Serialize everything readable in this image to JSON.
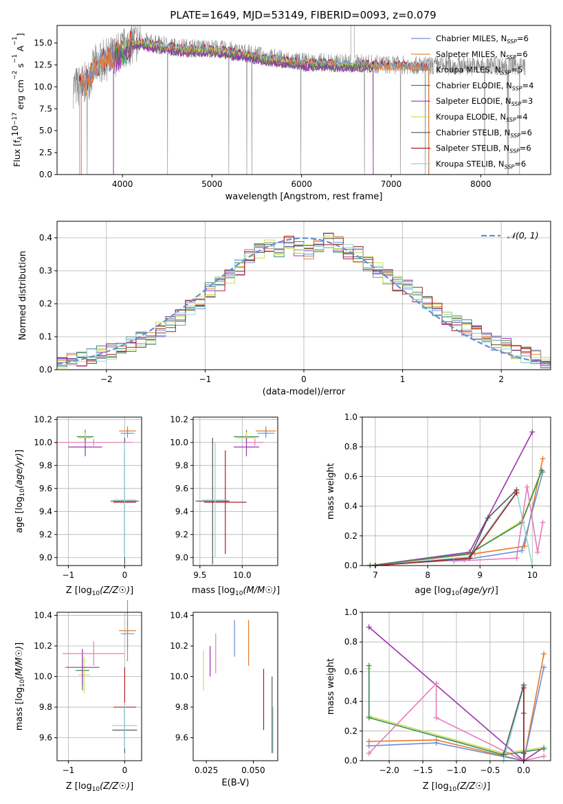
{
  "figure": {
    "title": "PLATE=1649, MJD=53149, FIBERID=0093, z=0.079"
  },
  "colors": {
    "chabrier_miles": "#6a8fd6",
    "salpeter_miles": "#e8782a",
    "kroupa_miles": "#8a8a8a",
    "chabrier_elodie": "#3a8a5a",
    "salpeter_elodie": "#9b30b0",
    "kroupa_elodie": "#c8e04a",
    "chabrier_stelib": "#555555",
    "salpeter_stelib": "#b01c1c",
    "kroupa_stelib": "#88d8d8",
    "pink": "#e87ab8",
    "grid": "#b0b0b0",
    "gauss": "#5f8fd6"
  },
  "chart_data": [
    {
      "id": "spectrum",
      "type": "line",
      "xlabel": "wavelength [Angstrom, rest frame]",
      "ylabel_parts": [
        "Flux [f",
        "λ",
        "10",
        "−17",
        " erg cm",
        "−2",
        " s",
        "−1",
        " A",
        "−1",
        "]"
      ],
      "xlim": [
        3270,
        8780
      ],
      "ylim": [
        0,
        17
      ],
      "xticks": [
        4000,
        5000,
        6000,
        7000,
        8000
      ],
      "yticks": [
        "0.0",
        "2.5",
        "5.0",
        "7.5",
        "10.0",
        "12.5",
        "15.0"
      ],
      "grid": false,
      "legend_position": "upper right",
      "legend": [
        {
          "label": "Chabrier MILES, N",
          "sub": "SSP",
          "suffix": "=6",
          "color": "#6a8fd6"
        },
        {
          "label": "Salpeter MILES, N",
          "sub": "SSP",
          "suffix": "=6",
          "color": "#e8782a"
        },
        {
          "label": "Kroupa MILES, N",
          "sub": "SSP",
          "suffix": "=5",
          "color": "#8a8a8a"
        },
        {
          "label": "Chabrier ELODIE, N",
          "sub": "SSP",
          "suffix": "=4",
          "color": "#3a8a5a"
        },
        {
          "label": "Salpeter ELODIE, N",
          "sub": "SSP",
          "suffix": "=3",
          "color": "#9b30b0"
        },
        {
          "label": "Kroupa ELODIE, N",
          "sub": "SSP",
          "suffix": "=4",
          "color": "#c8e04a"
        },
        {
          "label": "Chabrier STELIB, N",
          "sub": "SSP",
          "suffix": "=6",
          "color": "#555555"
        },
        {
          "label": "Salpeter STELIB, N",
          "sub": "SSP",
          "suffix": "=6",
          "color": "#b01c1c"
        },
        {
          "label": "Kroupa STELIB, N",
          "sub": "SSP",
          "suffix": "=6",
          "color": "#88d8d8"
        }
      ],
      "continuum": {
        "x": [
          3500,
          3600,
          3700,
          3800,
          3900,
          4000,
          4100,
          4200,
          4400,
          4600,
          4800,
          5000,
          5200,
          5400,
          5600,
          5800,
          6000,
          6200,
          6400,
          6600,
          6800,
          7000,
          7200,
          7400
        ],
        "y": [
          10.0,
          10.5,
          12.5,
          13.0,
          13.5,
          14.2,
          15.0,
          15.2,
          14.8,
          14.5,
          14.4,
          14.4,
          14.1,
          13.8,
          13.4,
          13.1,
          12.8,
          12.8,
          12.7,
          12.7,
          12.6,
          12.5,
          12.5,
          12.4
        ]
      },
      "data_range": [
        3450,
        8500
      ],
      "model_ranges": [
        {
          "series": "Salpeter STELIB",
          "x": [
            3520,
            7420
          ]
        },
        {
          "series": "Kroupa STELIB",
          "x": [
            3520,
            7420
          ]
        },
        {
          "series": "Chabrier MILES",
          "x": [
            3540,
            7420
          ]
        },
        {
          "series": "Salpeter MILES",
          "x": [
            3540,
            7420
          ]
        },
        {
          "series": "Kroupa ELODIE",
          "x": [
            3900,
            6800
          ]
        },
        {
          "series": "Chabrier ELODIE",
          "x": [
            3900,
            6800
          ]
        },
        {
          "series": "Salpeter ELODIE",
          "x": [
            3900,
            6800
          ]
        }
      ]
    },
    {
      "id": "residuals",
      "type": "step",
      "xlabel": "(data-model)/error",
      "ylabel": "Normed distribution",
      "xlim": [
        -2.5,
        2.5
      ],
      "ylim": [
        0,
        0.45
      ],
      "xticks": [
        -2,
        -1,
        0,
        1,
        2
      ],
      "xtick_labels": [
        "−2",
        "−1",
        "0",
        "1",
        "2"
      ],
      "yticks": [
        "0.0",
        "0.1",
        "0.2",
        "0.3",
        "0.4"
      ],
      "grid": true,
      "legend_position": "upper right",
      "legend_label": "𝒩(0, 1)",
      "bins": [
        -2.5,
        -2.4,
        -2.3,
        -2.2,
        -2.1,
        -2.0,
        -1.9,
        -1.8,
        -1.7,
        -1.6,
        -1.5,
        -1.4,
        -1.3,
        -1.2,
        -1.1,
        -1.0,
        -0.9,
        -0.8,
        -0.7,
        -0.6,
        -0.5,
        -0.4,
        -0.3,
        -0.2,
        -0.1,
        0.0,
        0.1,
        0.2,
        0.3,
        0.4,
        0.5,
        0.6,
        0.7,
        0.8,
        0.9,
        1.0,
        1.1,
        1.2,
        1.3,
        1.4,
        1.5,
        1.6,
        1.7,
        1.8,
        1.9,
        2.0,
        2.1,
        2.2,
        2.3,
        2.4,
        2.5
      ],
      "base_profile": [
        0.02,
        0.03,
        0.035,
        0.04,
        0.05,
        0.055,
        0.07,
        0.08,
        0.09,
        0.1,
        0.12,
        0.14,
        0.16,
        0.19,
        0.21,
        0.24,
        0.26,
        0.28,
        0.31,
        0.34,
        0.36,
        0.37,
        0.36,
        0.38,
        0.37,
        0.36,
        0.37,
        0.39,
        0.38,
        0.36,
        0.35,
        0.32,
        0.3,
        0.28,
        0.26,
        0.25,
        0.23,
        0.2,
        0.18,
        0.16,
        0.14,
        0.13,
        0.11,
        0.09,
        0.08,
        0.07,
        0.055,
        0.045,
        0.035,
        0.025
      ],
      "series": [
        "Chabrier MILES",
        "Salpeter MILES",
        "Kroupa MILES",
        "Chabrier ELODIE",
        "Salpeter ELODIE",
        "Kroupa ELODIE",
        "Chabrier STELIB",
        "Salpeter STELIB",
        "Kroupa STELIB"
      ],
      "gaussian": {
        "mu": 0,
        "sigma": 1
      }
    },
    {
      "id": "age_vs_Z",
      "type": "errorbar",
      "xlabel": "Z [log10(Z/Z☉)]",
      "ylabel": "age  [log10(age/yr)]",
      "xlim": [
        -1.2,
        0.3
      ],
      "ylim": [
        8.93,
        10.22
      ],
      "xticks": [
        -1,
        0
      ],
      "xtick_labels": [
        "−1",
        "0"
      ],
      "yticks": [
        9.0,
        9.2,
        9.4,
        9.6,
        9.8,
        10.0,
        10.2
      ],
      "grid": true,
      "points": [
        {
          "x": -0.7,
          "y": 10.05,
          "xe": 0.15,
          "ye": 0.06,
          "color": "#3a8a5a"
        },
        {
          "x": -0.7,
          "y": 10.04,
          "xe": 0.12,
          "ye": 0.05,
          "color": "#c8e04a"
        },
        {
          "x": -0.7,
          "y": 9.96,
          "xe": 0.3,
          "ye": 0.08,
          "color": "#9b30b0"
        },
        {
          "x": -0.55,
          "y": 10.0,
          "xe": 0.7,
          "ye": 0.03,
          "color": "#e87ab8"
        },
        {
          "x": 0.05,
          "y": 10.1,
          "xe": 0.15,
          "ye": 0.04,
          "color": "#e8782a"
        },
        {
          "x": 0.05,
          "y": 10.08,
          "xe": 0.12,
          "ye": 0.04,
          "color": "#6a8fd6"
        },
        {
          "x": 0.0,
          "y": 9.49,
          "xe": 0.25,
          "ye": 0.55,
          "color": "#555555"
        },
        {
          "x": 0.0,
          "y": 9.48,
          "xe": 0.2,
          "ye": 0.45,
          "color": "#b01c1c"
        },
        {
          "x": 0.0,
          "y": 9.5,
          "xe": 0.2,
          "ye": 0.5,
          "color": "#88d8d8"
        }
      ]
    },
    {
      "id": "age_vs_mass",
      "type": "errorbar",
      "xlabel": "mass [log10(M/M☉)]",
      "xlim": [
        9.42,
        10.42
      ],
      "ylim": [
        8.93,
        10.22
      ],
      "xticks": [
        9.5,
        10.0
      ],
      "xtick_labels": [
        "9.5",
        "10.0"
      ],
      "yticks": [
        9.0,
        9.2,
        9.4,
        9.6,
        9.8,
        10.0,
        10.2
      ],
      "grid": true,
      "points": [
        {
          "x": 10.05,
          "y": 10.05,
          "xe": 0.15,
          "ye": 0.06,
          "color": "#3a8a5a"
        },
        {
          "x": 10.05,
          "y": 10.04,
          "xe": 0.12,
          "ye": 0.05,
          "color": "#c8e04a"
        },
        {
          "x": 10.05,
          "y": 9.96,
          "xe": 0.15,
          "ye": 0.08,
          "color": "#9b30b0"
        },
        {
          "x": 10.15,
          "y": 10.0,
          "xe": 0.1,
          "ye": 0.03,
          "color": "#e87ab8"
        },
        {
          "x": 10.28,
          "y": 10.1,
          "xe": 0.12,
          "ye": 0.04,
          "color": "#e8782a"
        },
        {
          "x": 10.28,
          "y": 10.08,
          "xe": 0.1,
          "ye": 0.04,
          "color": "#6a8fd6"
        },
        {
          "x": 9.65,
          "y": 9.49,
          "xe": 0.2,
          "ye": 0.55,
          "color": "#555555"
        },
        {
          "x": 9.8,
          "y": 9.48,
          "xe": 0.25,
          "ye": 0.45,
          "color": "#b01c1c"
        },
        {
          "x": 9.68,
          "y": 9.5,
          "xe": 0.15,
          "ye": 0.5,
          "color": "#88d8d8"
        }
      ]
    },
    {
      "id": "weight_vs_age",
      "type": "line",
      "xlabel": "age  [log10(age/yr)]",
      "ylabel": "mass weight",
      "xlim": [
        6.75,
        10.35
      ],
      "ylim": [
        0,
        1.0
      ],
      "xticks": [
        7,
        8,
        9,
        10
      ],
      "yticks": [
        0.0,
        0.2,
        0.4,
        0.6,
        0.8,
        1.0
      ],
      "grid": true,
      "series": [
        {
          "name": "Salpeter ELODIE",
          "color": "#9b30b0",
          "x": [
            6.9,
            8.8,
            10.0
          ],
          "y": [
            0.0,
            0.09,
            0.9
          ]
        },
        {
          "name": "Salpeter MILES",
          "color": "#e8782a",
          "x": [
            6.9,
            8.9,
            9.85,
            10.2
          ],
          "y": [
            0.0,
            0.08,
            0.13,
            0.72
          ]
        },
        {
          "name": "Chabrier MILES",
          "color": "#6a8fd6",
          "x": [
            6.9,
            8.7,
            9.8,
            10.2
          ],
          "y": [
            0.0,
            0.04,
            0.1,
            0.63
          ]
        },
        {
          "name": "Kroupa ELODIE",
          "color": "#c8e04a",
          "x": [
            6.9,
            8.8,
            9.8,
            10.15
          ],
          "y": [
            0.0,
            0.08,
            0.3,
            0.62
          ]
        },
        {
          "name": "Chabrier ELODIE",
          "color": "#3a8a5a",
          "x": [
            6.9,
            8.8,
            9.8,
            10.18
          ],
          "y": [
            0.0,
            0.08,
            0.29,
            0.64
          ]
        },
        {
          "name": "Kroupa STELIB",
          "color": "#88d8d8",
          "x": [
            7.0,
            8.8,
            9.7,
            10.0
          ],
          "y": [
            0.0,
            0.06,
            0.5,
            0.0
          ]
        },
        {
          "name": "Chabrier STELIB",
          "color": "#555555",
          "x": [
            7.0,
            8.8,
            9.15,
            9.7
          ],
          "y": [
            0.0,
            0.05,
            0.32,
            0.51
          ]
        },
        {
          "name": "Salpeter STELIB",
          "color": "#b01c1c",
          "x": [
            7.0,
            8.8,
            9.7
          ],
          "y": [
            0.0,
            0.05,
            0.49
          ]
        },
        {
          "name": "pink",
          "color": "#e87ab8",
          "x": [
            8.5,
            9.7,
            9.9,
            10.1,
            10.2
          ],
          "y": [
            0.03,
            0.05,
            0.53,
            0.09,
            0.29
          ]
        }
      ]
    },
    {
      "id": "mass_vs_Z",
      "type": "errorbar",
      "xlabel": "Z [log10(Z/Z☉)]",
      "ylabel": "mass [log10(M/M☉)]",
      "xlim": [
        -1.2,
        0.3
      ],
      "ylim": [
        9.45,
        10.42
      ],
      "xticks": [
        -1,
        0
      ],
      "xtick_labels": [
        "−1",
        "0"
      ],
      "yticks": [
        9.6,
        9.8,
        10.0,
        10.2,
        10.4
      ],
      "grid": true,
      "points": [
        {
          "x": -0.75,
          "y": 10.04,
          "xe": 0.12,
          "ye": 0.13,
          "color": "#3a8a5a"
        },
        {
          "x": -0.72,
          "y": 10.01,
          "xe": 0.1,
          "ye": 0.12,
          "color": "#c8e04a"
        },
        {
          "x": -0.75,
          "y": 10.06,
          "xe": 0.3,
          "ye": 0.12,
          "color": "#9b30b0"
        },
        {
          "x": -0.55,
          "y": 10.15,
          "xe": 0.55,
          "ye": 0.08,
          "color": "#e87ab8"
        },
        {
          "x": 0.05,
          "y": 10.3,
          "xe": 0.15,
          "ye": 0.2,
          "color": "#e8782a"
        },
        {
          "x": 0.05,
          "y": 10.28,
          "xe": 0.12,
          "ye": 0.1,
          "color": "#6a8fd6"
        },
        {
          "x": 0.0,
          "y": 9.65,
          "xe": 0.22,
          "ye": 0.15,
          "color": "#555555"
        },
        {
          "x": 0.0,
          "y": 9.8,
          "xe": 0.2,
          "ye": 0.26,
          "color": "#b01c1c"
        },
        {
          "x": 0.0,
          "y": 9.68,
          "xe": 0.22,
          "ye": 0.15,
          "color": "#88d8d8"
        }
      ]
    },
    {
      "id": "mass_vs_EBV",
      "type": "errorbar",
      "xlabel": "E(B-V)",
      "xlim": [
        0.018,
        0.063
      ],
      "ylim": [
        9.45,
        10.42
      ],
      "xticks": [
        0.025,
        0.05
      ],
      "xtick_labels": [
        "0.025",
        "0.050"
      ],
      "yticks": [
        9.6,
        9.8,
        10.0,
        10.2,
        10.4
      ],
      "grid": false,
      "points": [
        {
          "x": 0.0235,
          "y": 10.04,
          "xe": 0,
          "ye": 0.13,
          "color": "#c8e04a"
        },
        {
          "x": 0.027,
          "y": 10.1,
          "xe": 0,
          "ye": 0.1,
          "color": "#9b30b0"
        },
        {
          "x": 0.03,
          "y": 10.15,
          "xe": 0,
          "ye": 0.13,
          "color": "#e87ab8"
        },
        {
          "x": 0.04,
          "y": 10.25,
          "xe": 0,
          "ye": 0.12,
          "color": "#6a8fd6"
        },
        {
          "x": 0.0475,
          "y": 10.22,
          "xe": 0,
          "ye": 0.15,
          "color": "#e8782a"
        },
        {
          "x": 0.0555,
          "y": 9.85,
          "xe": 0,
          "ye": 0.2,
          "color": "#b01c1c"
        },
        {
          "x": 0.06,
          "y": 9.75,
          "xe": 0,
          "ye": 0.25,
          "color": "#555555"
        },
        {
          "x": 0.0605,
          "y": 9.65,
          "xe": 0,
          "ye": 0.15,
          "color": "#88d8d8"
        }
      ]
    },
    {
      "id": "weight_vs_Z",
      "type": "line",
      "xlabel": "Z [log10(Z/Z☉)]",
      "ylabel": "mass weight",
      "xlim": [
        -2.4,
        0.4
      ],
      "ylim": [
        0,
        1.0
      ],
      "xticks": [
        -2.0,
        -1.5,
        -1.0,
        -0.5,
        0.0
      ],
      "xtick_labels": [
        "−2.0",
        "−1.5",
        "−1.0",
        "−0.5",
        "0.0"
      ],
      "yticks": [
        0.0,
        0.2,
        0.4,
        0.6,
        0.8,
        1.0
      ],
      "grid": true,
      "series": [
        {
          "name": "Salpeter ELODIE",
          "color": "#9b30b0",
          "x": [
            -2.3,
            0.0,
            0.3
          ],
          "y": [
            0.9,
            0.0,
            0.09
          ]
        },
        {
          "name": "Kroupa ELODIE",
          "color": "#c8e04a",
          "x": [
            -2.3,
            -2.3,
            -0.3,
            0.3
          ],
          "y": [
            0.62,
            0.3,
            0.05,
            0.09
          ]
        },
        {
          "name": "Chabrier ELODIE",
          "color": "#3a8a5a",
          "x": [
            -2.3,
            -2.3,
            -0.3,
            0.3
          ],
          "y": [
            0.64,
            0.29,
            0.04,
            0.08
          ]
        },
        {
          "name": "Salpeter MILES",
          "color": "#e8782a",
          "x": [
            -2.3,
            -1.3,
            0.0,
            0.3
          ],
          "y": [
            0.13,
            0.14,
            0.0,
            0.72
          ]
        },
        {
          "name": "Chabrier MILES",
          "color": "#6a8fd6",
          "x": [
            -2.3,
            -1.3,
            0.0,
            0.3
          ],
          "y": [
            0.1,
            0.12,
            0.0,
            0.63
          ]
        },
        {
          "name": "pink",
          "color": "#e87ab8",
          "x": [
            -2.3,
            -1.3,
            -1.3,
            0.0,
            0.3
          ],
          "y": [
            0.05,
            0.52,
            0.29,
            0.0,
            0.03
          ]
        },
        {
          "name": "Kroupa STELIB",
          "color": "#88d8d8",
          "x": [
            -0.3,
            0.0,
            0.0
          ],
          "y": [
            0.0,
            0.5,
            0.0
          ]
        },
        {
          "name": "Chabrier STELIB",
          "color": "#555555",
          "x": [
            -0.3,
            0.0,
            0.0,
            0.0
          ],
          "y": [
            0.04,
            0.51,
            0.32,
            0.05
          ]
        },
        {
          "name": "Salpeter STELIB",
          "color": "#b01c1c",
          "x": [
            0.0,
            0.0
          ],
          "y": [
            0.49,
            0.0
          ]
        }
      ]
    }
  ]
}
